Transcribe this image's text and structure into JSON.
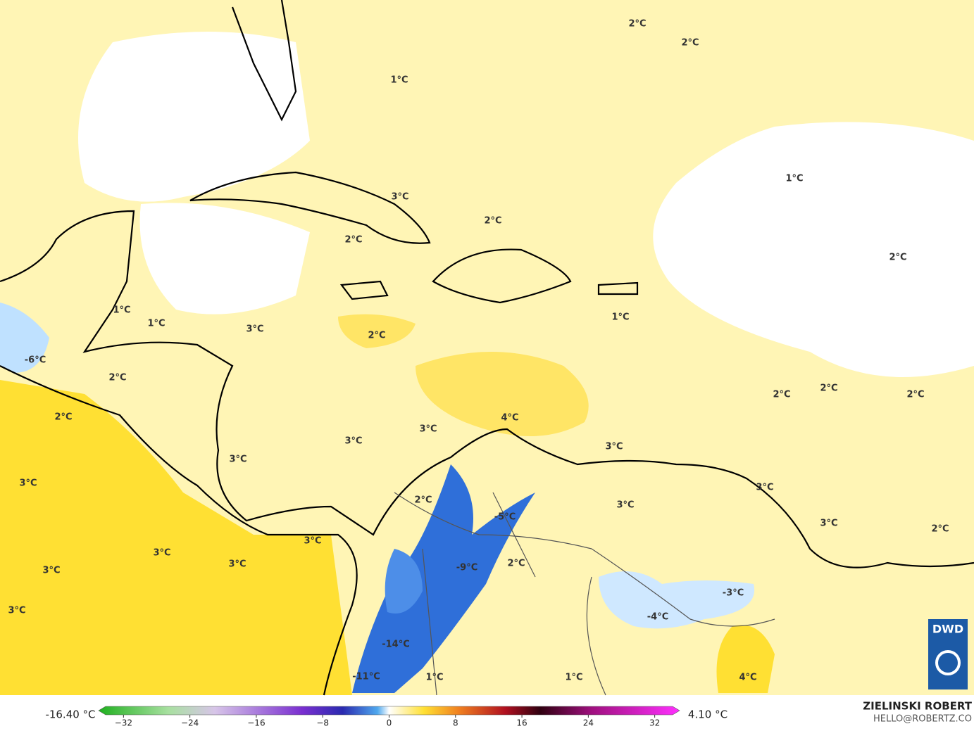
{
  "map": {
    "labels": [
      "2°C",
      "2°C",
      "1°C",
      "1°C",
      "3°C",
      "2°C",
      "2°C",
      "2°C",
      "1°C",
      "1°C",
      "1°C",
      "3°C",
      "2°C",
      "-6°C",
      "2°C",
      "2°C",
      "2°C",
      "2°C",
      "2°C",
      "4°C",
      "3°C",
      "3°C",
      "3°C",
      "3°C",
      "3°C",
      "3°C",
      "2°C",
      "3°C",
      "-5°C",
      "3°C",
      "2°C",
      "3°C",
      "3°C",
      "3°C",
      "3°C",
      "-9°C",
      "2°C",
      "-3°C",
      "3°C",
      "-4°C",
      "-14°C",
      "-11°C",
      "1°C",
      "1°C",
      "4°C"
    ]
  },
  "colorbar": {
    "min_label": "-16.40 °C",
    "max_label": "4.10 °C",
    "xlim": [
      -35,
      35
    ],
    "ticks": [
      {
        "value": -32,
        "label": "−32"
      },
      {
        "value": -24,
        "label": "−24"
      },
      {
        "value": -16,
        "label": "−16"
      },
      {
        "value": -8,
        "label": "−8"
      },
      0,
      8,
      16,
      24,
      32
    ]
  },
  "credit": {
    "name": "ZIELINSKI ROBERT",
    "email": "HELLO@ROBERTZ.CO"
  },
  "logo": "DWD"
}
